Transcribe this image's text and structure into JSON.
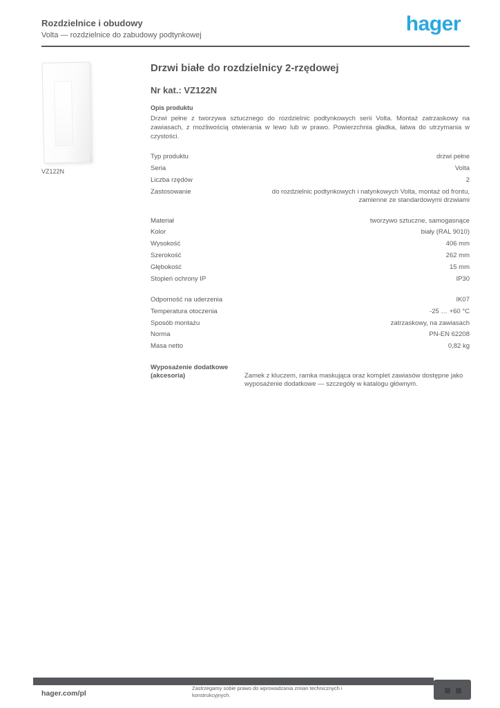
{
  "colors": {
    "brand_blue": "#29A7E0",
    "text_gray": "#55575a",
    "footer_bar_gray": "#55575a",
    "page_background": "#ffffff"
  },
  "header": {
    "category_line1": "Rozdzielnice i obudowy",
    "category_line2": "Volta — rozdzielnice do zabudowy podtynkowej",
    "logo_text": "hager"
  },
  "product": {
    "image_caption": "VZ122N",
    "title": "Drzwi białe do rozdzielnicy 2-rzędowej",
    "reference_line": "Nr kat.: VZ122N",
    "description_heading": "Opis produktu",
    "description": "Drzwi pełne z tworzywa sztucznego do rozdzielnic podtynkowych serii Volta. Montaż zatrzaskowy na zawiasach, z możliwością otwierania w lewo lub w prawo. Powierzchnia gładka, łatwa do utrzymania w czystości."
  },
  "specs": {
    "rows": [
      {
        "label": "Typ produktu",
        "value": "drzwi pełne"
      },
      {
        "label": "Seria",
        "value": "Volta"
      },
      {
        "label": "Liczba rzędów",
        "value": "2"
      },
      {
        "label": "Zastosowanie",
        "value": "do rozdzielnic podtynkowych i natynkowych Volta, montaż od frontu, zamienne ze standardowymi drzwiami"
      },
      {
        "label": "Materiał",
        "value": "tworzywo sztuczne, samogasnące",
        "gap_before": true
      },
      {
        "label": "Kolor",
        "value": "biały (RAL 9010)"
      },
      {
        "label": "Wysokość",
        "value": "406 mm"
      },
      {
        "label": "Szerokość",
        "value": "262 mm"
      },
      {
        "label": "Głębokość",
        "value": "15 mm"
      },
      {
        "label": "Stopień ochrony IP",
        "value": "IP30"
      },
      {
        "label": "Odporność na uderzenia",
        "value": "IK07",
        "gap_before": true
      },
      {
        "label": "Temperatura otoczenia",
        "value": "-25 … +60 °C"
      },
      {
        "label": "Sposób montażu",
        "value": "zatrzaskowy, na zawiasach"
      },
      {
        "label": "Norma",
        "value": "PN-EN 62208"
      },
      {
        "label": "Masa netto",
        "value": "0,82 kg"
      }
    ]
  },
  "extra": {
    "label": "Wyposażenie dodatkowe (akcesoria)",
    "value": "Zamek z kluczem, ramka maskująca oraz komplet zawiasów dostępne jako wyposażenie dodatkowe — szczegóły w katalogu głównym."
  },
  "footer": {
    "website": "hager.com/pl",
    "disclaimer": "Zastrzegamy sobie prawo do wprowadzania zmian technicznych i konstrukcyjnych."
  }
}
